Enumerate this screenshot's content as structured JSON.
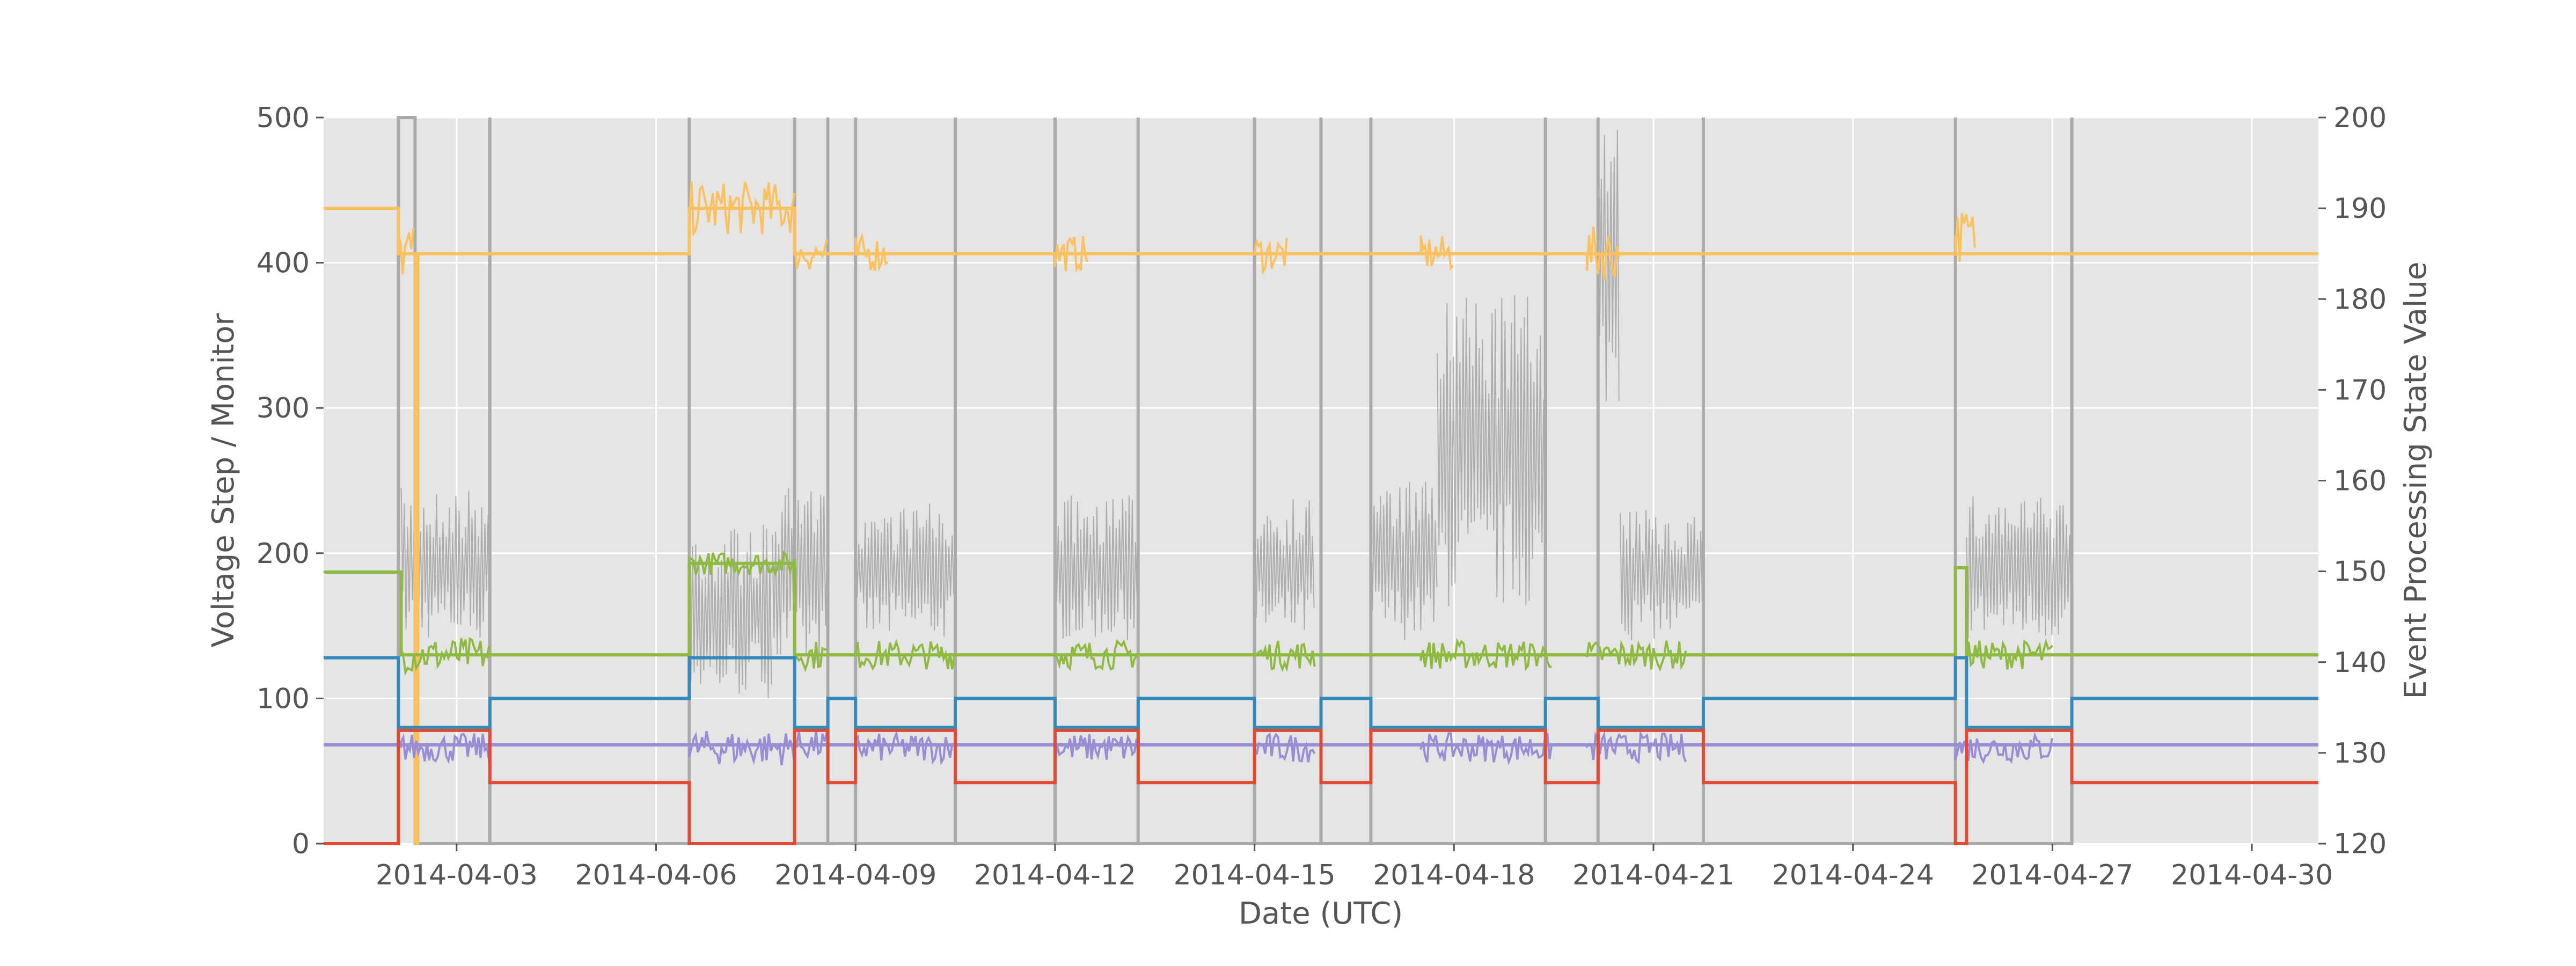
{
  "chart_data": {
    "type": "line",
    "title": "",
    "xlabel": "Date (UTC)",
    "ylabel_left": "Voltage Step / Monitor",
    "ylabel_right": "Event Processing State Value",
    "x_range": [
      "2014-04-01",
      "2014-04-31"
    ],
    "x_ticks": [
      "2014-04-03",
      "2014-04-06",
      "2014-04-09",
      "2014-04-12",
      "2014-04-15",
      "2014-04-18",
      "2014-04-21",
      "2014-04-24",
      "2014-04-27",
      "2014-04-30"
    ],
    "ylim_left": [
      0,
      500
    ],
    "yticks_left": [
      "0",
      "100",
      "200",
      "300",
      "400",
      "500"
    ],
    "ylim_right": [
      120,
      200
    ],
    "yticks_right": [
      "120",
      "130",
      "140",
      "150",
      "160",
      "170",
      "180",
      "190",
      "200"
    ],
    "grid": true,
    "background": "#e5e5e5",
    "colors": {
      "gray": "#aaaaaa",
      "orange": "#fbc15e",
      "green": "#8eba42",
      "blue": "#348abd",
      "purple": "#988ed5",
      "red": "#e24a33"
    },
    "series": [
      {
        "axis": "right",
        "color": "#fbc15e",
        "points": [
          [
            "2014-04-01 00:00",
            190
          ],
          [
            "2014-04-02 03:00",
            190
          ],
          [
            "2014-04-02 03:00",
            185
          ],
          [
            "2014-04-02 09:00",
            185
          ],
          [
            "2014-04-02 09:00",
            120
          ],
          [
            "2014-04-02 10:00",
            120
          ],
          [
            "2014-04-02 10:00",
            185
          ],
          [
            "2014-04-06 12:00",
            185
          ],
          [
            "2014-04-06 12:00",
            190
          ],
          [
            "2014-04-08 02:00",
            190
          ],
          [
            "2014-04-08 02:00",
            185
          ],
          [
            "2014-04-31 00:00",
            185
          ]
        ],
        "noise": [
          [
            "2014-04-02 03:00",
            "2014-04-02 09:00",
            185,
            3
          ],
          [
            "2014-04-06 12:00",
            "2014-04-08 02:00",
            190,
            3
          ],
          [
            "2014-04-08 02:00",
            "2014-04-08 14:00",
            185,
            2
          ],
          [
            "2014-04-09 00:00",
            "2014-04-09 12:00",
            185,
            2
          ],
          [
            "2014-04-12 00:00",
            "2014-04-12 12:00",
            185,
            2
          ],
          [
            "2014-04-15 00:00",
            "2014-04-15 12:00",
            185,
            2
          ],
          [
            "2014-04-17 12:00",
            "2014-04-18 00:00",
            185,
            2
          ],
          [
            "2014-04-20 00:00",
            "2014-04-20 12:00",
            185,
            3
          ],
          [
            "2014-04-25 13:00",
            "2014-04-25 20:00",
            187,
            3
          ]
        ]
      },
      {
        "axis": "left",
        "color": "#8eba42",
        "points": [
          [
            "2014-04-01 00:00",
            187
          ],
          [
            "2014-04-02 04:00",
            187
          ],
          [
            "2014-04-02 04:00",
            130
          ],
          [
            "2014-04-06 12:00",
            130
          ],
          [
            "2014-04-06 12:00",
            193
          ],
          [
            "2014-04-08 02:00",
            193
          ],
          [
            "2014-04-08 02:00",
            130
          ],
          [
            "2014-04-25 13:00",
            130
          ],
          [
            "2014-04-25 13:00",
            190
          ],
          [
            "2014-04-25 17:00",
            190
          ],
          [
            "2014-04-25 17:00",
            130
          ],
          [
            "2014-04-31 00:00",
            130
          ]
        ],
        "noise": [
          [
            "2014-04-02 04:00",
            "2014-04-03 12:00",
            130,
            12
          ],
          [
            "2014-04-06 12:00",
            "2014-04-08 02:00",
            193,
            8
          ],
          [
            "2014-04-08 02:00",
            "2014-04-08 14:00",
            130,
            10
          ],
          [
            "2014-04-09 00:00",
            "2014-04-10 12:00",
            130,
            10
          ],
          [
            "2014-04-12 00:00",
            "2014-04-13 06:00",
            130,
            10
          ],
          [
            "2014-04-15 00:00",
            "2014-04-15 22:00",
            130,
            10
          ],
          [
            "2014-04-17 12:00",
            "2014-04-19 12:00",
            130,
            10
          ],
          [
            "2014-04-20 00:00",
            "2014-04-21 12:00",
            130,
            10
          ],
          [
            "2014-04-25 17:00",
            "2014-04-27 00:00",
            130,
            10
          ]
        ]
      },
      {
        "axis": "left",
        "color": "#348abd",
        "points": [
          [
            "2014-04-01 00:00",
            128
          ],
          [
            "2014-04-02 03:00",
            128
          ],
          [
            "2014-04-02 03:00",
            80
          ],
          [
            "2014-04-03 12:00",
            80
          ],
          [
            "2014-04-03 12:00",
            100
          ],
          [
            "2014-04-06 12:00",
            100
          ],
          [
            "2014-04-06 12:00",
            128
          ],
          [
            "2014-04-08 02:00",
            128
          ],
          [
            "2014-04-08 02:00",
            80
          ],
          [
            "2014-04-08 14:00",
            80
          ],
          [
            "2014-04-08 14:00",
            100
          ],
          [
            "2014-04-09 00:00",
            100
          ],
          [
            "2014-04-09 00:00",
            80
          ],
          [
            "2014-04-10 12:00",
            80
          ],
          [
            "2014-04-10 12:00",
            100
          ],
          [
            "2014-04-12 00:00",
            100
          ],
          [
            "2014-04-12 00:00",
            80
          ],
          [
            "2014-04-13 06:00",
            80
          ],
          [
            "2014-04-13 06:00",
            100
          ],
          [
            "2014-04-15 00:00",
            100
          ],
          [
            "2014-04-15 00:00",
            80
          ],
          [
            "2014-04-16 00:00",
            80
          ],
          [
            "2014-04-16 00:00",
            100
          ],
          [
            "2014-04-16 18:00",
            100
          ],
          [
            "2014-04-16 18:00",
            80
          ],
          [
            "2014-04-19 09:00",
            80
          ],
          [
            "2014-04-19 09:00",
            100
          ],
          [
            "2014-04-20 04:00",
            100
          ],
          [
            "2014-04-20 04:00",
            80
          ],
          [
            "2014-04-21 18:00",
            80
          ],
          [
            "2014-04-21 18:00",
            100
          ],
          [
            "2014-04-25 13:00",
            100
          ],
          [
            "2014-04-25 13:00",
            128
          ],
          [
            "2014-04-25 17:00",
            128
          ],
          [
            "2014-04-25 17:00",
            80
          ],
          [
            "2014-04-27 07:00",
            80
          ],
          [
            "2014-04-27 07:00",
            100
          ],
          [
            "2014-04-31 00:00",
            100
          ]
        ]
      },
      {
        "axis": "left",
        "color": "#988ed5",
        "points": [
          [
            "2014-04-01 00:00",
            68
          ],
          [
            "2014-04-31 00:00",
            68
          ]
        ],
        "noise": [
          [
            "2014-04-02 04:00",
            "2014-04-03 12:00",
            66,
            10
          ],
          [
            "2014-04-06 12:00",
            "2014-04-08 02:00",
            66,
            12
          ],
          [
            "2014-04-08 02:00",
            "2014-04-08 14:00",
            68,
            10
          ],
          [
            "2014-04-09 00:00",
            "2014-04-10 12:00",
            66,
            10
          ],
          [
            "2014-04-12 00:00",
            "2014-04-13 06:00",
            66,
            10
          ],
          [
            "2014-04-15 00:00",
            "2014-04-15 22:00",
            66,
            10
          ],
          [
            "2014-04-17 12:00",
            "2014-04-19 12:00",
            66,
            10
          ],
          [
            "2014-04-20 00:00",
            "2014-04-21 12:00",
            66,
            10
          ],
          [
            "2014-04-25 13:00",
            "2014-04-27 00:00",
            66,
            10
          ]
        ]
      },
      {
        "axis": "left",
        "color": "#e24a33",
        "points": [
          [
            "2014-04-01 00:00",
            0
          ],
          [
            "2014-04-02 03:00",
            0
          ],
          [
            "2014-04-02 03:00",
            78
          ],
          [
            "2014-04-03 12:00",
            78
          ],
          [
            "2014-04-03 12:00",
            42
          ],
          [
            "2014-04-06 12:00",
            42
          ],
          [
            "2014-04-06 12:00",
            0
          ],
          [
            "2014-04-08 02:00",
            0
          ],
          [
            "2014-04-08 02:00",
            78
          ],
          [
            "2014-04-08 14:00",
            78
          ],
          [
            "2014-04-08 14:00",
            42
          ],
          [
            "2014-04-09 00:00",
            42
          ],
          [
            "2014-04-09 00:00",
            78
          ],
          [
            "2014-04-10 12:00",
            78
          ],
          [
            "2014-04-10 12:00",
            42
          ],
          [
            "2014-04-12 00:00",
            42
          ],
          [
            "2014-04-12 00:00",
            78
          ],
          [
            "2014-04-13 06:00",
            78
          ],
          [
            "2014-04-13 06:00",
            42
          ],
          [
            "2014-04-15 00:00",
            42
          ],
          [
            "2014-04-15 00:00",
            78
          ],
          [
            "2014-04-16 00:00",
            78
          ],
          [
            "2014-04-16 00:00",
            42
          ],
          [
            "2014-04-16 18:00",
            42
          ],
          [
            "2014-04-16 18:00",
            78
          ],
          [
            "2014-04-19 09:00",
            78
          ],
          [
            "2014-04-19 09:00",
            42
          ],
          [
            "2014-04-20 04:00",
            42
          ],
          [
            "2014-04-20 04:00",
            78
          ],
          [
            "2014-04-21 18:00",
            78
          ],
          [
            "2014-04-21 18:00",
            42
          ],
          [
            "2014-04-25 13:00",
            42
          ],
          [
            "2014-04-25 13:00",
            0
          ],
          [
            "2014-04-25 17:00",
            0
          ],
          [
            "2014-04-25 17:00",
            78
          ],
          [
            "2014-04-27 07:00",
            78
          ],
          [
            "2014-04-27 07:00",
            42
          ],
          [
            "2014-04-31 00:00",
            42
          ]
        ]
      },
      {
        "axis": "left",
        "color": "#aaaaaa",
        "points": [
          [
            "2014-04-02 03:00",
            0
          ],
          [
            "2014-04-02 03:00",
            500
          ],
          [
            "2014-04-02 09:00",
            500
          ],
          [
            "2014-04-02 09:00",
            0
          ],
          [
            "2014-04-03 12:00",
            0
          ],
          [
            "2014-04-03 12:00",
            500
          ],
          [
            "2014-04-03 12:00",
            0
          ],
          [
            "2014-04-06 12:00",
            0
          ],
          [
            "2014-04-06 12:00",
            500
          ],
          [
            "2014-04-06 12:00",
            0
          ],
          [
            "2014-04-08 02:00",
            0
          ],
          [
            "2014-04-08 02:00",
            500
          ],
          [
            "2014-04-08 02:00",
            0
          ],
          [
            "2014-04-08 14:00",
            0
          ],
          [
            "2014-04-08 14:00",
            500
          ],
          [
            "2014-04-08 14:00",
            0
          ],
          [
            "2014-04-09 00:00",
            0
          ],
          [
            "2014-04-09 00:00",
            500
          ],
          [
            "2014-04-09 00:00",
            0
          ],
          [
            "2014-04-10 12:00",
            0
          ],
          [
            "2014-04-10 12:00",
            500
          ],
          [
            "2014-04-10 12:00",
            0
          ],
          [
            "2014-04-12 00:00",
            0
          ],
          [
            "2014-04-12 00:00",
            500
          ],
          [
            "2014-04-12 00:00",
            0
          ],
          [
            "2014-04-13 06:00",
            0
          ],
          [
            "2014-04-13 06:00",
            500
          ],
          [
            "2014-04-13 06:00",
            0
          ],
          [
            "2014-04-15 00:00",
            0
          ],
          [
            "2014-04-15 00:00",
            500
          ],
          [
            "2014-04-15 00:00",
            0
          ],
          [
            "2014-04-16 00:00",
            0
          ],
          [
            "2014-04-16 00:00",
            500
          ],
          [
            "2014-04-16 00:00",
            0
          ],
          [
            "2014-04-16 18:00",
            0
          ],
          [
            "2014-04-16 18:00",
            500
          ],
          [
            "2014-04-16 18:00",
            0
          ],
          [
            "2014-04-19 09:00",
            0
          ],
          [
            "2014-04-19 09:00",
            500
          ],
          [
            "2014-04-19 09:00",
            0
          ],
          [
            "2014-04-20 04:00",
            0
          ],
          [
            "2014-04-20 04:00",
            500
          ],
          [
            "2014-04-20 04:00",
            0
          ],
          [
            "2014-04-21 18:00",
            0
          ],
          [
            "2014-04-21 18:00",
            500
          ],
          [
            "2014-04-21 18:00",
            0
          ],
          [
            "2014-04-25 13:00",
            0
          ],
          [
            "2014-04-25 13:00",
            500
          ],
          [
            "2014-04-25 13:00",
            0
          ],
          [
            "2014-04-27 07:00",
            0
          ],
          [
            "2014-04-27 07:00",
            500
          ],
          [
            "2014-04-27 07:00",
            0
          ]
        ],
        "bands": [
          [
            "2014-04-02 04:00",
            "2014-04-03 12:00",
            140,
            245
          ],
          [
            "2014-04-06 12:00",
            "2014-04-07 18:00",
            100,
            220
          ],
          [
            "2014-04-07 18:00",
            "2014-04-08 14:00",
            120,
            245
          ],
          [
            "2014-04-09 00:00",
            "2014-04-10 12:00",
            140,
            235
          ],
          [
            "2014-04-12 00:00",
            "2014-04-13 06:00",
            140,
            240
          ],
          [
            "2014-04-15 00:00",
            "2014-04-15 22:00",
            140,
            240
          ],
          [
            "2014-04-16 18:00",
            "2014-04-17 18:00",
            140,
            250
          ],
          [
            "2014-04-17 18:00",
            "2014-04-19 09:00",
            160,
            380
          ],
          [
            "2014-04-20 04:00",
            "2014-04-20 12:00",
            300,
            500
          ],
          [
            "2014-04-20 12:00",
            "2014-04-21 18:00",
            140,
            230
          ],
          [
            "2014-04-25 17:00",
            "2014-04-27 07:00",
            140,
            240
          ]
        ]
      }
    ]
  }
}
